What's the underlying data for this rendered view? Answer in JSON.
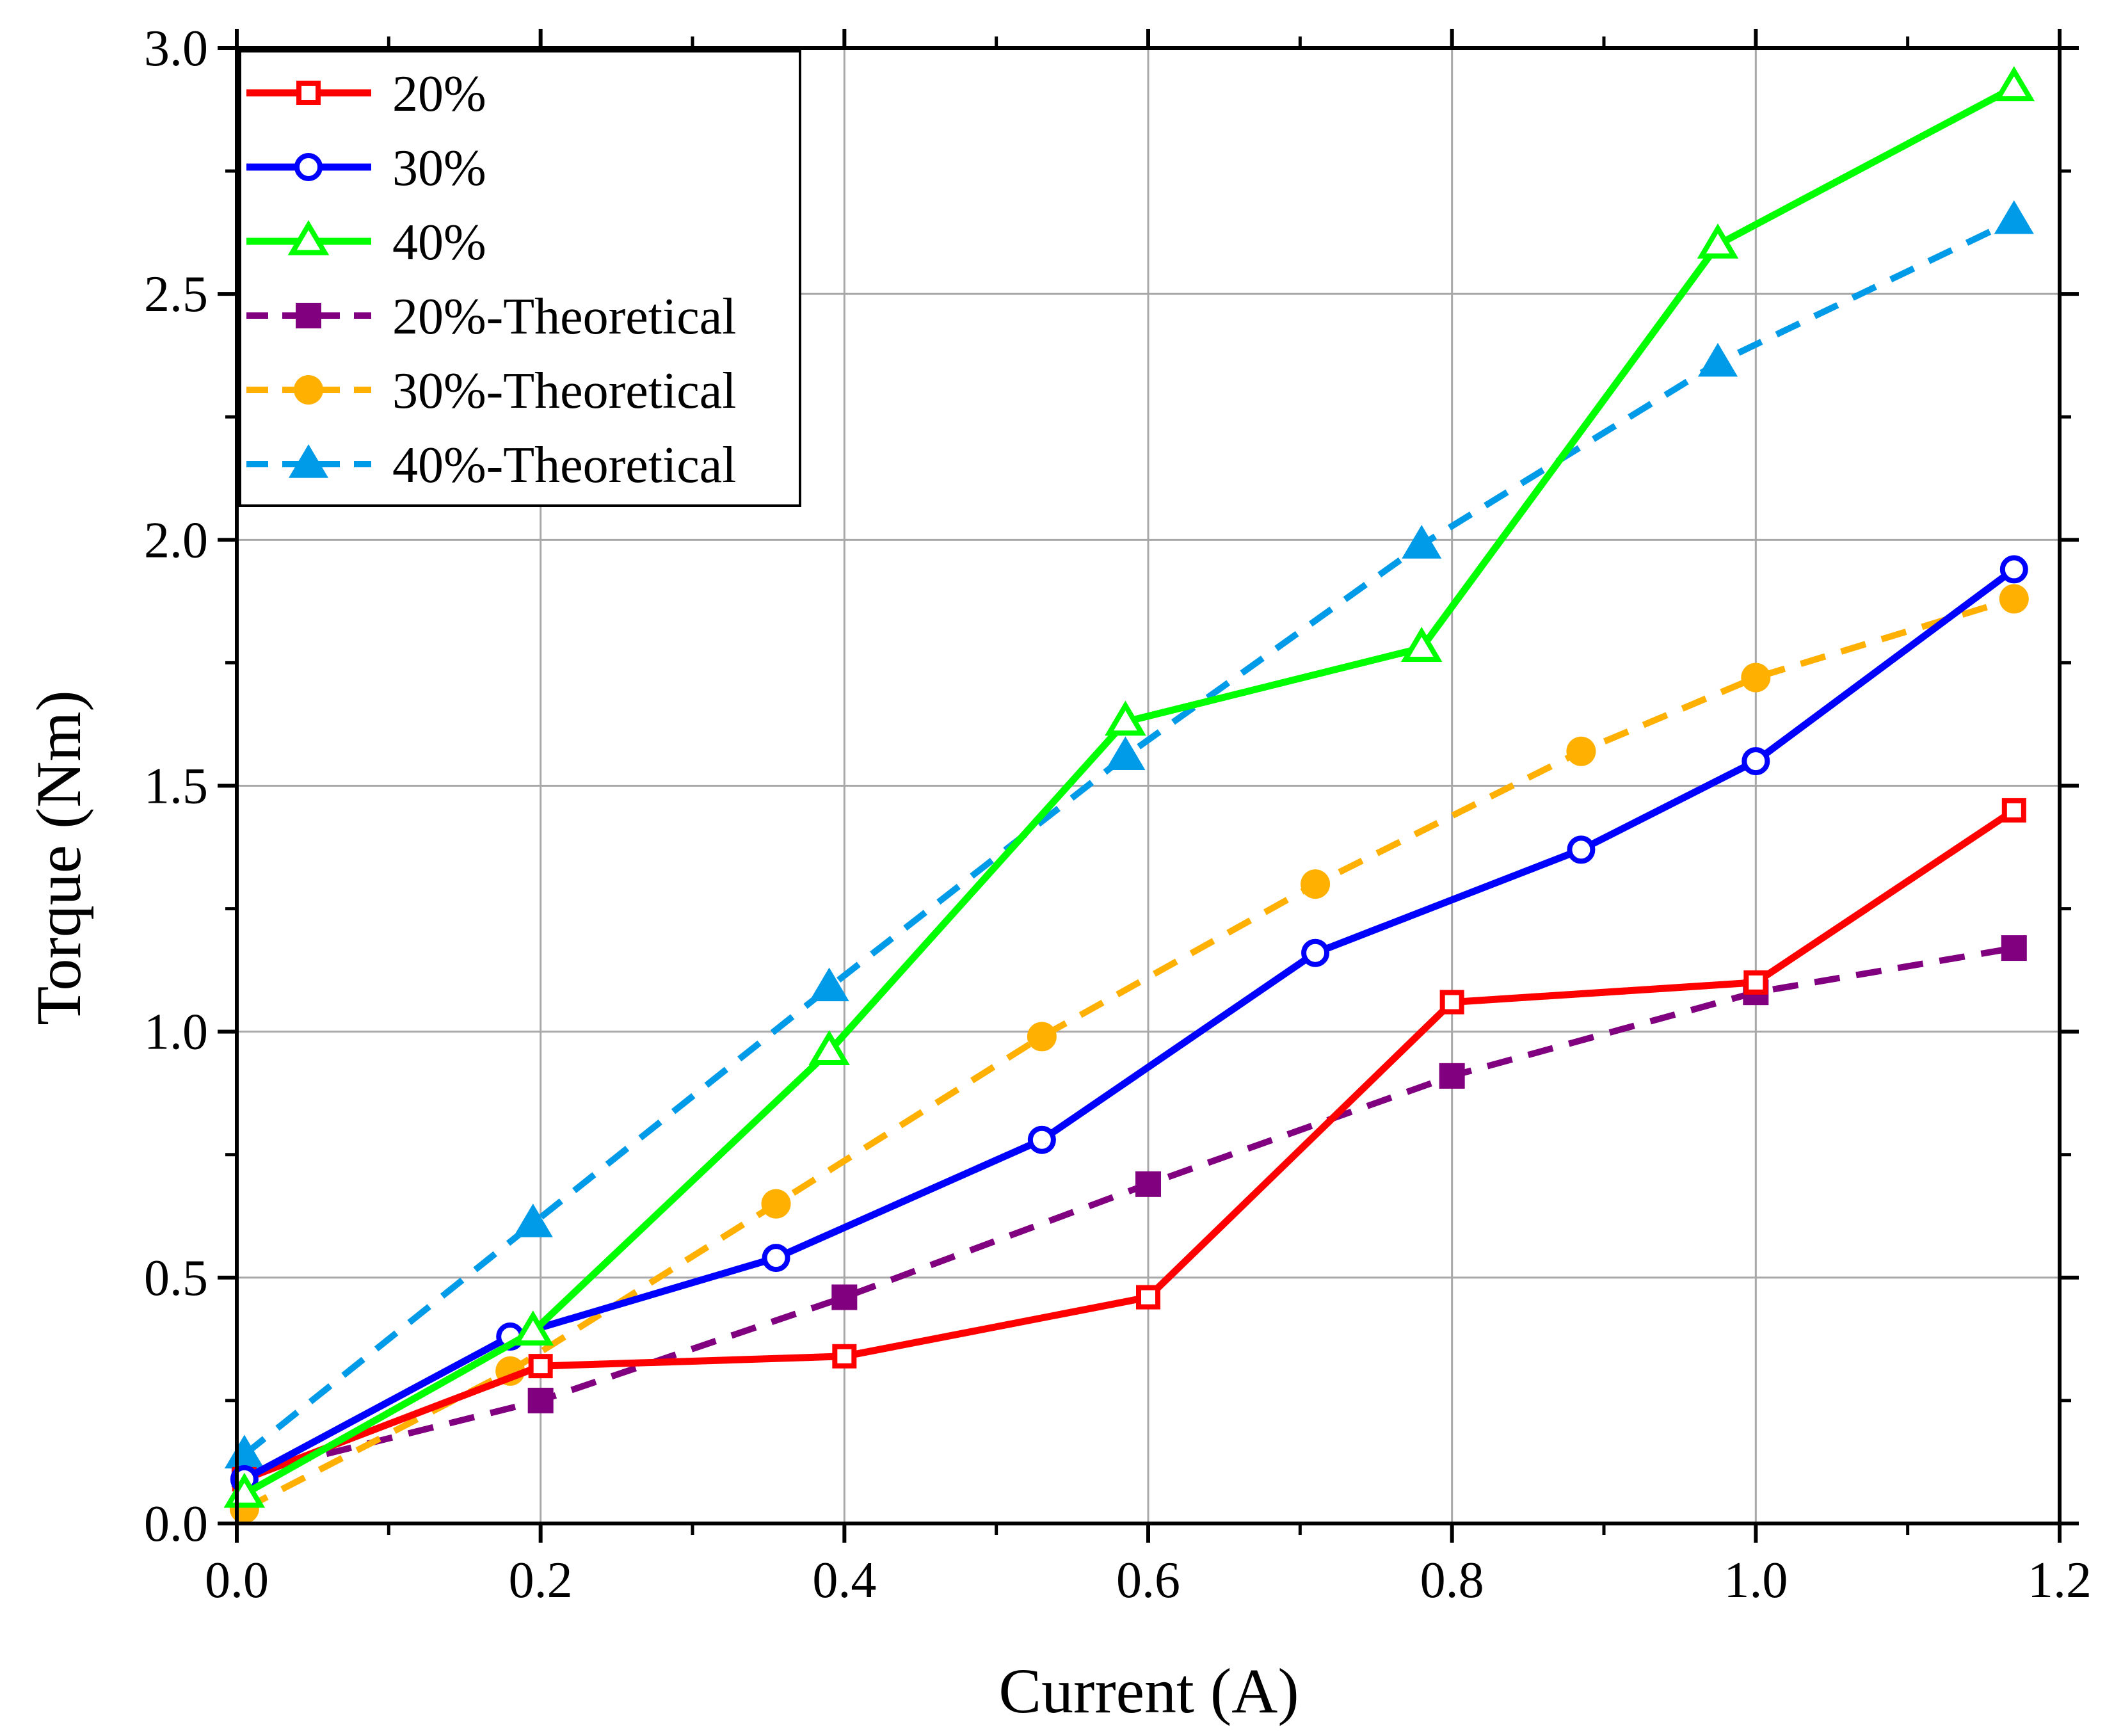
{
  "chart_data": {
    "type": "line",
    "title": "",
    "xlabel": "Current (A)",
    "ylabel": "Torque (Nm)",
    "xlim": [
      0.0,
      1.2
    ],
    "ylim": [
      0.0,
      3.0
    ],
    "xticks": [
      0.0,
      0.2,
      0.4,
      0.6,
      0.8,
      1.0,
      1.2
    ],
    "xtick_labels": [
      "0.0",
      "0.2",
      "0.4",
      "0.6",
      "0.8",
      "1.0",
      "1.2"
    ],
    "yticks": [
      0.0,
      0.5,
      1.0,
      1.5,
      2.0,
      2.5,
      3.0
    ],
    "ytick_labels": [
      "0.0",
      "0.5",
      "1.0",
      "1.5",
      "2.0",
      "2.5",
      "3.0"
    ],
    "grid": true,
    "legend_position": "top-left",
    "series": [
      {
        "name": "20%",
        "color": "#ff0000",
        "line": "solid",
        "marker": "square-open",
        "x": [
          0.005,
          0.2,
          0.4,
          0.6,
          0.8,
          1.0,
          1.17
        ],
        "y": [
          0.09,
          0.32,
          0.34,
          0.46,
          1.06,
          1.1,
          1.45
        ]
      },
      {
        "name": "30%",
        "color": "#0000ff",
        "line": "solid",
        "marker": "circle-open",
        "x": [
          0.005,
          0.18,
          0.355,
          0.53,
          0.71,
          0.885,
          1.0,
          1.17
        ],
        "y": [
          0.09,
          0.38,
          0.54,
          0.78,
          1.16,
          1.37,
          1.55,
          1.94
        ]
      },
      {
        "name": "40%",
        "color": "#00ff00",
        "line": "solid",
        "marker": "triangle-open",
        "x": [
          0.005,
          0.195,
          0.39,
          0.585,
          0.78,
          0.975,
          1.17
        ],
        "y": [
          0.06,
          0.39,
          0.96,
          1.63,
          1.78,
          2.6,
          2.92
        ]
      },
      {
        "name": "20%-Theoretical",
        "color": "#800080",
        "line": "dashed",
        "marker": "square-filled",
        "x": [
          0.005,
          0.2,
          0.4,
          0.6,
          0.8,
          1.0,
          1.17
        ],
        "y": [
          0.1,
          0.25,
          0.46,
          0.69,
          0.91,
          1.08,
          1.17
        ]
      },
      {
        "name": "30%-Theoretical",
        "color": "#ffb000",
        "line": "dashed",
        "marker": "circle-filled",
        "x": [
          0.005,
          0.18,
          0.355,
          0.53,
          0.71,
          0.885,
          1.0,
          1.17
        ],
        "y": [
          0.03,
          0.31,
          0.65,
          0.99,
          1.3,
          1.57,
          1.72,
          1.88
        ]
      },
      {
        "name": "40%-Theoretical",
        "color": "#009be8",
        "line": "dashed",
        "marker": "triangle-filled",
        "x": [
          0.005,
          0.195,
          0.39,
          0.585,
          0.78,
          0.975,
          1.17
        ],
        "y": [
          0.14,
          0.61,
          1.09,
          1.56,
          1.99,
          2.36,
          2.65
        ]
      }
    ]
  }
}
